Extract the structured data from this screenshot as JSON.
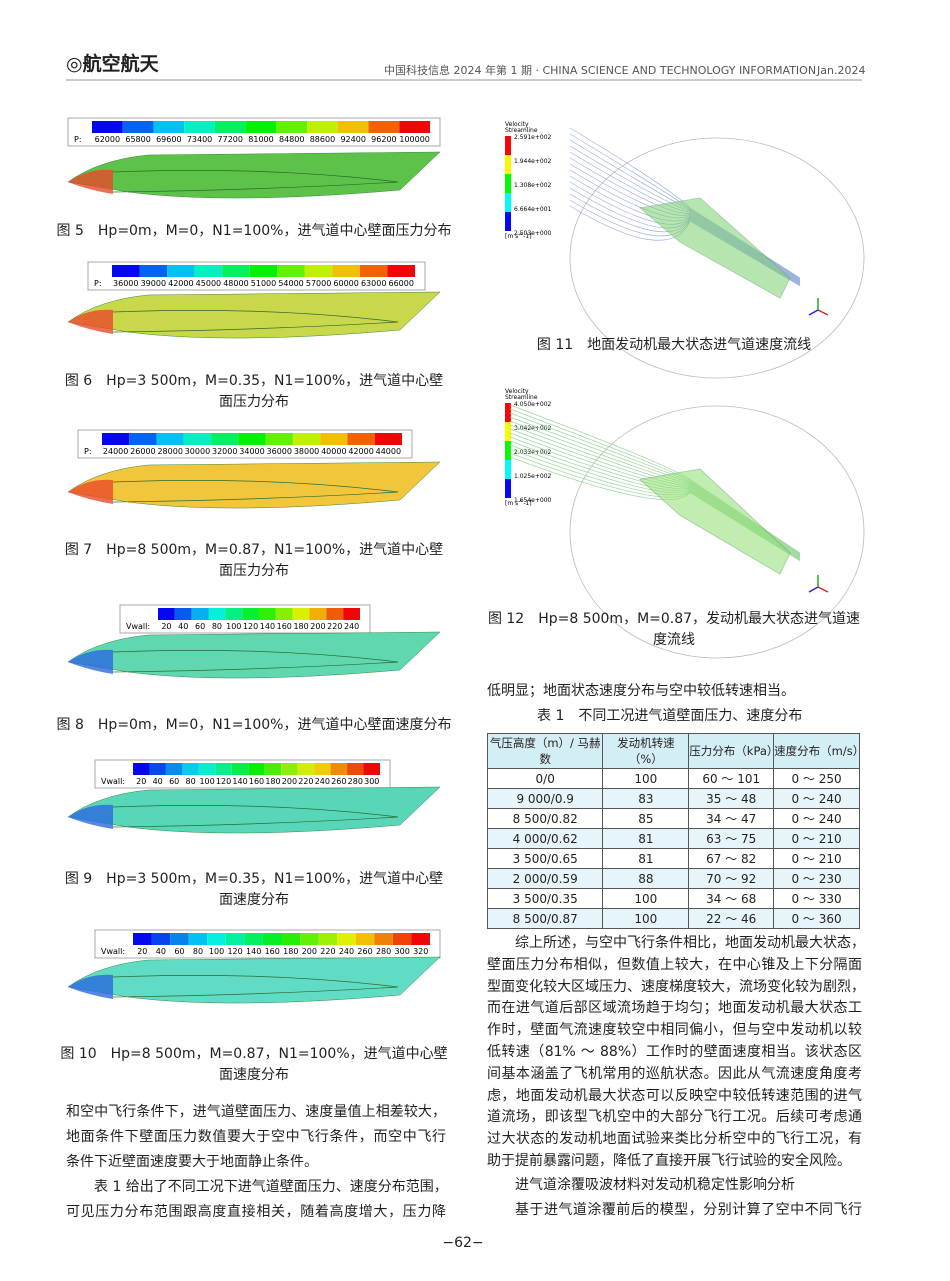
{
  "header": {
    "section": "◎航空航天",
    "journal": "中国科技信息 2024 年第 1 期 · CHINA SCIENCE AND TECHNOLOGY INFORMATION",
    "date": "Jan.2024"
  },
  "figures": [
    {
      "caption": [
        "图 5　Hp=0m，M=0，N1=100%，进气道中心壁面压力分布"
      ],
      "legend": {
        "prefix": "P:",
        "labels": [
          "62000",
          "65800",
          "69600",
          "73400",
          "77200",
          "81000",
          "84800",
          "88600",
          "92400",
          "96200",
          "100000"
        ]
      }
    },
    {
      "caption": [
        "图 6　Hp=3 500m，M=0.35，N1=100%，进气道中心壁",
        "面压力分布"
      ],
      "legend": {
        "prefix": "P:",
        "labels": [
          "36000",
          "39000",
          "42000",
          "45000",
          "48000",
          "51000",
          "54000",
          "57000",
          "60000",
          "63000",
          "66000"
        ]
      }
    },
    {
      "caption": [
        "图 7　Hp=8 500m，M=0.87，N1=100%，进气道中心壁",
        "面压力分布"
      ],
      "legend": {
        "prefix": "P:",
        "labels": [
          "24000",
          "26000",
          "28000",
          "30000",
          "32000",
          "34000",
          "36000",
          "38000",
          "40000",
          "42000",
          "44000"
        ]
      }
    },
    {
      "caption": [
        "图 8　Hp=0m，M=0，N1=100%，进气道中心壁面速度分布"
      ],
      "legend": {
        "prefix": "Vwall:",
        "labels": [
          "20",
          "40",
          "60",
          "80",
          "100",
          "120",
          "140",
          "160",
          "180",
          "200",
          "220",
          "240"
        ]
      }
    },
    {
      "caption": [
        "图 9　Hp=3 500m，M=0.35，N1=100%，进气道中心壁",
        "面速度分布"
      ],
      "legend": {
        "prefix": "Vwall:",
        "labels": [
          "20",
          "40",
          "60",
          "80",
          "100",
          "120",
          "140",
          "160",
          "180",
          "200",
          "220",
          "240",
          "260",
          "280",
          "300"
        ]
      }
    },
    {
      "caption": [
        "图 10　Hp=8 500m，M=0.87，N1=100%，进气道中心壁",
        "面速度分布"
      ],
      "legend": {
        "prefix": "Vwall:",
        "labels": [
          "20",
          "40",
          "60",
          "80",
          "100",
          "120",
          "140",
          "160",
          "180",
          "200",
          "220",
          "240",
          "260",
          "280",
          "300",
          "320"
        ]
      }
    },
    {
      "caption": [
        "图 11　地面发动机最大状态进气道速度流线"
      ],
      "legend": {
        "title": [
          "Velocity",
          "Streamline"
        ],
        "labels": [
          "2.591e+002",
          "1.944e+002",
          "1.308e+002",
          "6.664e+001",
          "2.503e+000"
        ],
        "unit": "[m s^-1]"
      }
    },
    {
      "caption": [
        "图 12　Hp=8 500m，M=0.87，发动机最大状态进气道速",
        "度流线"
      ],
      "legend": {
        "title": [
          "Velocity",
          "Streamline"
        ],
        "labels": [
          "4.050e+002",
          "3.042e+002",
          "2.033e+002",
          "1.025e+002",
          "1.654e+000"
        ],
        "unit": "[m s^-1]"
      }
    }
  ],
  "table": {
    "title": "表 1　不同工况进气道壁面压力、速度分布",
    "header": [
      "气压高度（m）/ 马赫数",
      "发动机转速（%）",
      "压力分布（kPa）",
      "速度分布（m/s）"
    ],
    "rows": [
      [
        "0/0",
        "100",
        "60 ～ 101",
        "0 ～ 250"
      ],
      [
        "9 000/0.9",
        "83",
        "35 ～ 48",
        "0 ～ 240"
      ],
      [
        "8 500/0.82",
        "85",
        "34 ～ 47",
        "0 ～ 240"
      ],
      [
        "4 000/0.62",
        "81",
        "63 ～ 75",
        "0 ～ 210"
      ],
      [
        "3 500/0.65",
        "81",
        "67 ～ 82",
        "0 ～ 210"
      ],
      [
        "2 000/0.59",
        "88",
        "70 ～ 92",
        "0 ～ 230"
      ],
      [
        "3 500/0.35",
        "100",
        "34 ～ 68",
        "0 ～ 330"
      ],
      [
        "8 500/0.87",
        "100",
        "22 ～ 46",
        "0 ～ 360"
      ]
    ]
  },
  "paragraphs": [
    {
      "lines": [
        "和空中飞行条件下，进气道壁面压力、速度量值上相差较大，",
        "地面条件下壁面压力数值要大于空中飞行条件，而空中飞行",
        "条件下近壁面速度要大于地面静止条件。"
      ]
    },
    {
      "lines": [
        "表 1 给出了不同工况下进气道壁面压力、速度分布范围，",
        "可见压力分布范围跟高度直接相关，随着高度增大，压力降"
      ]
    },
    {
      "lines": [
        "低明显；地面状态速度分布与空中较低转速相当。"
      ]
    },
    {
      "lines": [
        "综上所述，与空中飞行条件相比，地面发动机最大状态，",
        "壁面压力分布相似，但数值上较大，在中心锥及上下分隔面",
        "型面变化较大区域压力、速度梯度较大，流场变化较为剧烈，",
        "而在进气道后部区域流场趋于均匀；地面发动机最大状态工",
        "作时，壁面气流速度较空中相同偏小，但与空中发动机以较",
        "低转速（81% ～ 88%）工作时的壁面速度相当。该状态区",
        "间基本涵盖了飞机常用的巡航状态。因此从气流速度角度考",
        "虑，地面发动机最大状态可以反映空中较低转速范围的进气",
        "道流场，即该型飞机空中的大部分飞行工况。后续可考虑通",
        "过大状态的发动机地面试验来类比分析空中的飞行工况，有",
        "助于提前暴露问题，降低了直接开展飞行试验的安全风险。"
      ]
    },
    {
      "lines": [
        "进气道涂覆吸波材料对发动机稳定性影响分析"
      ]
    },
    {
      "lines": [
        "基于进气道涂覆前后的模型，分别计算了空中不同飞行"
      ]
    }
  ],
  "page_number": "−62−"
}
